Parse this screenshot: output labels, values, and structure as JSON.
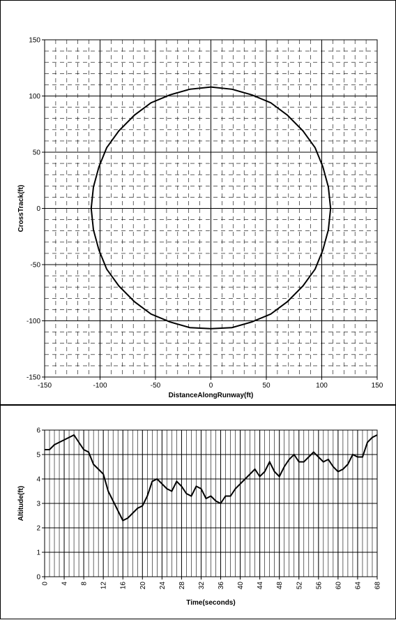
{
  "chart_data": [
    {
      "type": "line",
      "xlabel": "DistanceAlongRunway(ft)",
      "ylabel": "CrossTrack(ft)",
      "xlim": [
        -150,
        150
      ],
      "ylim": [
        -150,
        150
      ],
      "xticks": [
        -150,
        -100,
        -50,
        0,
        50,
        100,
        150
      ],
      "yticks": [
        -150,
        -100,
        -50,
        0,
        50,
        100,
        150
      ],
      "grid": true,
      "minor_grid": {
        "step": 10,
        "dashed": true
      },
      "x": [
        108,
        106,
        101,
        94,
        83,
        69,
        54,
        37,
        19,
        0,
        -19,
        -37,
        -54,
        -69,
        -83,
        -94,
        -101,
        -106,
        -108,
        -106,
        -101,
        -94,
        -83,
        -69,
        -54,
        -37,
        -19,
        0,
        19,
        37,
        54,
        69,
        83,
        94,
        101,
        106,
        108
      ],
      "series": [
        {
          "color": "#000000",
          "values": [
            0,
            19,
            37,
            54,
            69,
            83,
            94,
            101,
            106,
            108,
            106,
            101,
            94,
            83,
            69,
            54,
            37,
            19,
            0,
            -19,
            -37,
            -54,
            -69,
            -83,
            -94,
            -101,
            -106,
            -107,
            -106,
            -101,
            -94,
            -83,
            -69,
            -54,
            -37,
            -19,
            0
          ]
        }
      ]
    },
    {
      "type": "line",
      "xlabel": "Time(seconds)",
      "ylabel": "Altitude(ft)",
      "xlim": [
        0,
        68
      ],
      "ylim": [
        0,
        6
      ],
      "xticks": [
        0,
        4,
        8,
        12,
        16,
        20,
        24,
        28,
        32,
        36,
        40,
        44,
        48,
        52,
        56,
        60,
        64,
        68
      ],
      "yticks": [
        0,
        1,
        2,
        3,
        4,
        5,
        6
      ],
      "grid": true,
      "minor_grid": {
        "step": 1,
        "dashed": false
      },
      "rotate_xticks": true,
      "x": [
        0,
        1,
        2,
        3,
        4,
        5,
        6,
        7,
        8,
        9,
        10,
        11,
        12,
        13,
        14,
        15,
        16,
        17,
        18,
        19,
        20,
        21,
        22,
        23,
        24,
        25,
        26,
        27,
        28,
        29,
        30,
        31,
        32,
        33,
        34,
        35,
        36,
        37,
        38,
        39,
        40,
        41,
        42,
        43,
        44,
        45,
        46,
        47,
        48,
        49,
        50,
        51,
        52,
        53,
        54,
        55,
        56,
        57,
        58,
        59,
        60,
        61,
        62,
        63,
        64,
        65,
        66,
        67,
        68
      ],
      "series": [
        {
          "color": "#000000",
          "values": [
            5.2,
            5.2,
            5.4,
            5.5,
            5.6,
            5.7,
            5.8,
            5.5,
            5.2,
            5.1,
            4.6,
            4.4,
            4.2,
            3.5,
            3.1,
            2.7,
            2.3,
            2.4,
            2.6,
            2.8,
            2.9,
            3.3,
            3.9,
            4.0,
            3.8,
            3.6,
            3.5,
            3.9,
            3.7,
            3.4,
            3.3,
            3.7,
            3.6,
            3.2,
            3.3,
            3.1,
            3.0,
            3.3,
            3.3,
            3.6,
            3.8,
            4.0,
            4.2,
            4.4,
            4.1,
            4.3,
            4.7,
            4.3,
            4.1,
            4.5,
            4.8,
            5.0,
            4.7,
            4.7,
            4.9,
            5.1,
            4.9,
            4.7,
            4.8,
            4.5,
            4.3,
            4.4,
            4.6,
            5.0,
            4.9,
            4.9,
            5.5,
            5.7,
            5.8
          ]
        }
      ]
    }
  ]
}
